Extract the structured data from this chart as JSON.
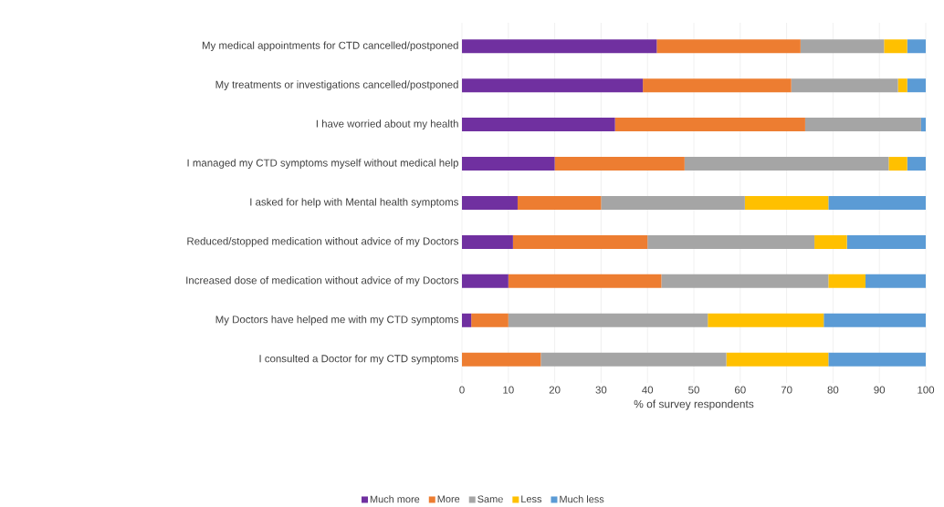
{
  "chart_data": {
    "type": "bar",
    "orientation": "horizontal",
    "stacked": true,
    "xlabel": "% of survey respondents",
    "categories": [
      "My medical appointments for CTD cancelled/postponed",
      "My treatments or investigations cancelled/postponed",
      "I have worried about my health",
      "I managed my CTD symptoms myself without medical help",
      "I asked for help with Mental health symptoms",
      "Reduced/stopped medication without advice of my Doctors",
      "Increased dose of medication without advice of my Doctors",
      "My Doctors have helped me with my CTD symptoms",
      "I consulted a Doctor for my CTD symptoms"
    ],
    "series": [
      {
        "name": "Much more",
        "color": "#7030a0",
        "values": [
          42,
          39,
          33,
          20,
          12,
          11,
          10,
          2,
          0
        ]
      },
      {
        "name": "More",
        "color": "#ed7d31",
        "values": [
          31,
          32,
          41,
          28,
          18,
          29,
          33,
          8,
          17
        ]
      },
      {
        "name": "Same",
        "color": "#a5a5a5",
        "values": [
          18,
          23,
          25,
          44,
          31,
          36,
          36,
          43,
          40
        ]
      },
      {
        "name": "Less",
        "color": "#ffc000",
        "values": [
          5,
          2,
          0,
          4,
          18,
          7,
          8,
          25,
          22
        ]
      },
      {
        "name": "Much less",
        "color": "#5b9bd5",
        "values": [
          4,
          4,
          1,
          4,
          21,
          17,
          13,
          22,
          21
        ]
      }
    ],
    "xlim": [
      0,
      100
    ],
    "xticks": [
      0,
      10,
      20,
      30,
      40,
      50,
      60,
      70,
      80,
      90,
      100
    ],
    "grid": "x",
    "legend": "bottom"
  }
}
